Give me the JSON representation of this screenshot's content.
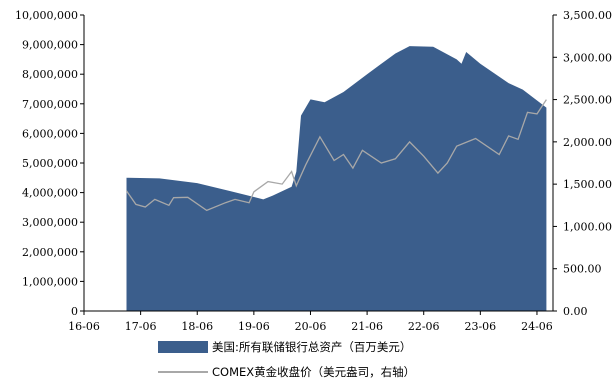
{
  "chart_data": {
    "type": "area+line",
    "colors": {
      "assets": "#3b5e8c",
      "gold": "#a8a8a8"
    },
    "x_tick_labels": [
      "16-06",
      "17-06",
      "18-06",
      "19-06",
      "20-06",
      "21-06",
      "22-06",
      "23-06",
      "24-06"
    ],
    "x_range": [
      "2016-06",
      "2024-08"
    ],
    "left_axis": {
      "ylim": [
        0,
        10000000
      ],
      "tick_labels": [
        "0",
        "1,000,000",
        "2,000,000",
        "3,000,000",
        "4,000,000",
        "5,000,000",
        "6,000,000",
        "7,000,000",
        "8,000,000",
        "9,000,000",
        "10,000,000"
      ]
    },
    "right_axis": {
      "ylim": [
        0,
        3500
      ],
      "tick_labels": [
        "0.00",
        "500.00",
        "1,000.00",
        "1,500.00",
        "2,000.00",
        "2,500.00",
        "3,000.00",
        "3,500.00"
      ]
    },
    "series": [
      {
        "name": "美国:所有联储银行总资产（百万美元）",
        "axis": "left",
        "type": "area",
        "points": [
          [
            "2017-03",
            4500000
          ],
          [
            "2017-10",
            4480000
          ],
          [
            "2018-06",
            4320000
          ],
          [
            "2019-01",
            4050000
          ],
          [
            "2019-08",
            3770000
          ],
          [
            "2019-10",
            3900000
          ],
          [
            "2020-02",
            4200000
          ],
          [
            "2020-03",
            4700000
          ],
          [
            "2020-04",
            6600000
          ],
          [
            "2020-06",
            7150000
          ],
          [
            "2020-09",
            7050000
          ],
          [
            "2021-01",
            7400000
          ],
          [
            "2021-06",
            8000000
          ],
          [
            "2021-12",
            8700000
          ],
          [
            "2022-03",
            8950000
          ],
          [
            "2022-08",
            8930000
          ],
          [
            "2023-01",
            8500000
          ],
          [
            "2023-02",
            8350000
          ],
          [
            "2023-03",
            8750000
          ],
          [
            "2023-06",
            8350000
          ],
          [
            "2023-12",
            7700000
          ],
          [
            "2024-03",
            7480000
          ],
          [
            "2024-08",
            6870000
          ]
        ]
      },
      {
        "name": "COMEX黄金收盘价（美元盎司，右轴）",
        "axis": "right",
        "type": "line",
        "points": [
          [
            "2017-03",
            1420
          ],
          [
            "2017-05",
            1260
          ],
          [
            "2017-07",
            1230
          ],
          [
            "2017-09",
            1320
          ],
          [
            "2017-12",
            1250
          ],
          [
            "2018-01",
            1340
          ],
          [
            "2018-04",
            1345
          ],
          [
            "2018-08",
            1190
          ],
          [
            "2018-12",
            1280
          ],
          [
            "2019-02",
            1320
          ],
          [
            "2019-05",
            1280
          ],
          [
            "2019-06",
            1410
          ],
          [
            "2019-09",
            1530
          ],
          [
            "2019-12",
            1500
          ],
          [
            "2020-02",
            1650
          ],
          [
            "2020-03",
            1480
          ],
          [
            "2020-05",
            1730
          ],
          [
            "2020-08",
            2060
          ],
          [
            "2020-11",
            1780
          ],
          [
            "2021-01",
            1850
          ],
          [
            "2021-03",
            1690
          ],
          [
            "2021-05",
            1900
          ],
          [
            "2021-09",
            1750
          ],
          [
            "2021-12",
            1800
          ],
          [
            "2022-03",
            2000
          ],
          [
            "2022-06",
            1830
          ],
          [
            "2022-09",
            1630
          ],
          [
            "2022-11",
            1750
          ],
          [
            "2023-01",
            1950
          ],
          [
            "2023-05",
            2040
          ],
          [
            "2023-10",
            1850
          ],
          [
            "2023-12",
            2070
          ],
          [
            "2024-02",
            2030
          ],
          [
            "2024-04",
            2350
          ],
          [
            "2024-06",
            2330
          ],
          [
            "2024-08",
            2500
          ]
        ]
      }
    ]
  }
}
